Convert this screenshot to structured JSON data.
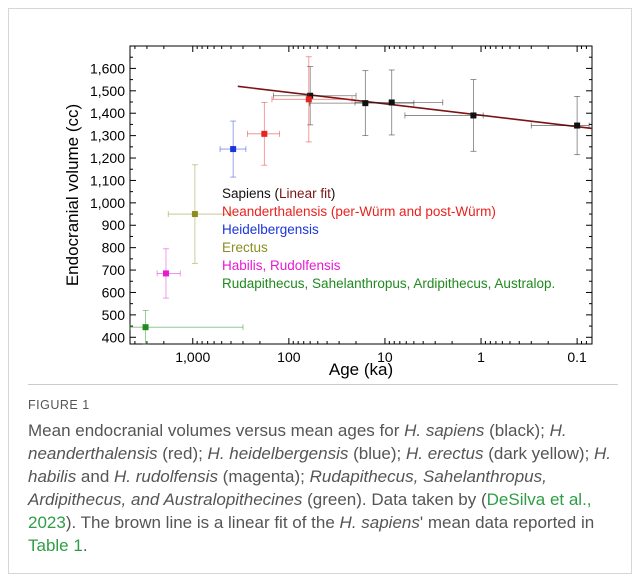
{
  "chart_data": {
    "type": "scatter",
    "xlabel": "Age (ka)",
    "ylabel": "Endocranial volume (cc)",
    "x_scale": "log",
    "x_reversed": true,
    "xlim": [
      4500,
      0.07
    ],
    "ylim": [
      370,
      1700
    ],
    "x_ticks": [
      1000,
      100,
      10,
      1,
      0.1
    ],
    "x_tick_labels": [
      "1,000",
      "100",
      "10",
      "1",
      "0.1"
    ],
    "y_ticks": [
      400,
      500,
      600,
      700,
      800,
      900,
      1000,
      1100,
      1200,
      1300,
      1400,
      1500,
      1600
    ],
    "y_tick_labels": [
      "400",
      "500",
      "600",
      "700",
      "800",
      "900",
      "1,000",
      "1,100",
      "1,200",
      "1,300",
      "1,400",
      "1,500",
      "1,600"
    ],
    "grid": false,
    "legend_position": "bottom-right",
    "series": [
      {
        "name": "Sapiens",
        "color": "#111111",
        "points": [
          {
            "x": 60,
            "y": 1478,
            "xerr": [
              85,
              40
            ],
            "yerr": [
              130,
              130
            ]
          },
          {
            "x": 16,
            "y": 1445,
            "xerr": [
              45,
              11
            ],
            "yerr": [
              145,
              145
            ]
          },
          {
            "x": 8.5,
            "y": 1448,
            "xerr": [
              12,
              6
            ],
            "yerr": [
              145,
              145
            ]
          },
          {
            "x": 1.2,
            "y": 1390,
            "xerr": [
              5,
              0.25
            ],
            "yerr": [
              160,
              160
            ]
          },
          {
            "x": 0.1,
            "y": 1345,
            "xerr": [
              0.2,
              0.025
            ],
            "yerr": [
              130,
              130
            ]
          }
        ]
      },
      {
        "name": "Neanderthalensis (per-Würm and post-Würm)",
        "color": "#e8221e",
        "points": [
          {
            "x": 62,
            "y": 1462,
            "xerr": [
              88,
              40
            ],
            "yerr": [
              190,
              190
            ]
          },
          {
            "x": 180,
            "y": 1308,
            "xerr": [
              90,
              55
            ],
            "yerr": [
              140,
              140
            ]
          }
        ]
      },
      {
        "name": "Heidelbergensis",
        "color": "#1b35d9",
        "points": [
          {
            "x": 380,
            "y": 1240,
            "xerr": [
              140,
              100
            ],
            "yerr": [
              125,
              125
            ]
          }
        ]
      },
      {
        "name": "Erectus",
        "color": "#8c8c20",
        "points": [
          {
            "x": 950,
            "y": 950,
            "xerr": [
              850,
              550
            ],
            "yerr": [
              220,
              220
            ]
          }
        ]
      },
      {
        "name": "Habilis, Rudolfensis",
        "color": "#e51bd2",
        "points": [
          {
            "x": 1900,
            "y": 685,
            "xerr": [
              450,
              550
            ],
            "yerr": [
              110,
              110
            ]
          }
        ]
      },
      {
        "name": "Rudapithecus, Sahelanthropus, Ardipithecus, Australop.",
        "color": "#1f8a1f",
        "points": [
          {
            "x": 3100,
            "y": 445,
            "xerr": [
              1500,
              2800
            ],
            "yerr": [
              75,
              75
            ]
          }
        ]
      }
    ],
    "fit": {
      "name": "Linear fit",
      "color": "#7a1414",
      "x0": 340,
      "y0": 1520,
      "x1": 0.07,
      "y1": 1332
    }
  },
  "legend": [
    {
      "parts": [
        {
          "text": "Sapiens (",
          "color": "#111111"
        },
        {
          "text": "Linear fit",
          "color": "#7a1414"
        },
        {
          "text": ")",
          "color": "#111111"
        }
      ]
    },
    {
      "parts": [
        {
          "text": "Neanderthalensis (per-Würm and post-Würm)",
          "color": "#e8221e"
        }
      ]
    },
    {
      "parts": [
        {
          "text": "Heidelbergensis",
          "color": "#1b35d9"
        }
      ]
    },
    {
      "parts": [
        {
          "text": "Erectus",
          "color": "#8c8c20"
        }
      ]
    },
    {
      "parts": [
        {
          "text": "Habilis, Rudolfensis",
          "color": "#e51bd2"
        }
      ]
    },
    {
      "parts": [
        {
          "text": "Rudapithecus, Sahelanthropus, Ardipithecus, Australop.",
          "color": "#1f8a1f"
        }
      ]
    }
  ],
  "figure": {
    "label": "FIGURE 1",
    "caption": {
      "t1": "Mean endocranial volumes versus mean ages for ",
      "i1": "H. sapiens",
      "t2": " (black); ",
      "i2": "H. neanderthalensis",
      "t3": " (red); ",
      "i3": "H. heidelbergensis",
      "t4": " (blue); ",
      "i4": "H. erectus",
      "t5": " (dark yellow); ",
      "i5": "H. habilis",
      "t6": " and ",
      "i6": "H. rudolfensis",
      "t7": " (magenta); ",
      "i7": "Rudapithecus, Sahelanthropus, Ardipithecus, and Australopithecines",
      "t8": " (green). Data taken by (",
      "l1": "DeSilva et al., 2023",
      "t9": "). The brown line is a linear fit of the ",
      "i8": "H. sapiens",
      "t10": "' mean data reported in ",
      "l2": "Table 1",
      "t11": "."
    }
  }
}
